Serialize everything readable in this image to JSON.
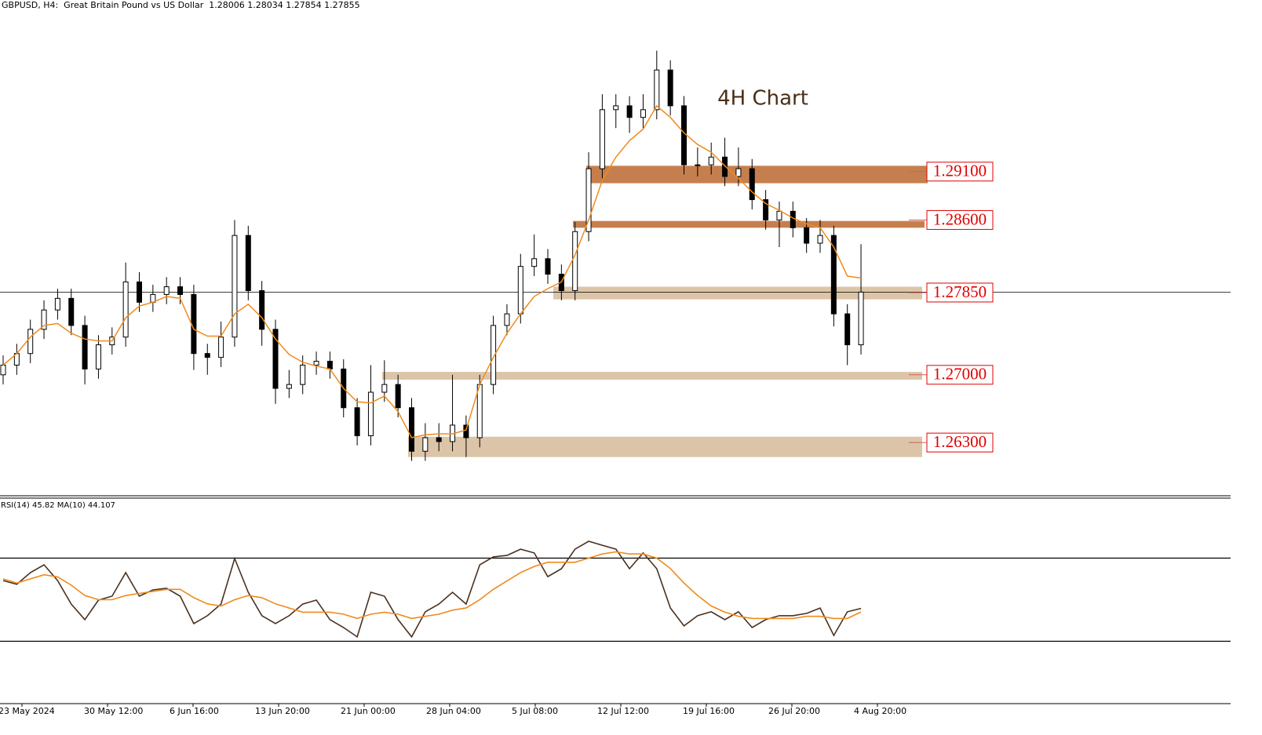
{
  "chart_data": [
    {
      "type": "candlestick",
      "title": "GBPUSD, H4:  Great Britain Pound vs US Dollar  1.28006 1.28034 1.27854 1.27855",
      "annotation": "4H Chart",
      "ylim": [
        1.2575,
        1.3076
      ],
      "open": [
        1.27,
        1.271,
        1.2722,
        1.2747,
        1.2767,
        1.2779,
        1.2751,
        1.2706,
        1.2731,
        1.2739,
        1.2796,
        1.2775,
        1.2783,
        1.2791,
        1.2783,
        1.2722,
        1.2718,
        1.2739,
        1.2844,
        1.2787,
        1.2747,
        1.2686,
        1.269,
        1.271,
        1.2714,
        1.2706,
        1.2666,
        1.2637,
        1.2682,
        1.269,
        1.2666,
        1.2621,
        1.2635,
        1.2631,
        1.2648,
        1.2635,
        1.269,
        1.2751,
        1.2763,
        1.2812,
        1.282,
        1.2804,
        1.2787,
        1.2848,
        1.2913,
        1.2974,
        1.2978,
        1.2966,
        1.2974,
        1.3015,
        1.2978,
        1.2917,
        1.2917,
        1.2925,
        1.2905,
        1.2913,
        1.2881,
        1.286,
        1.2869,
        1.2852,
        1.2836,
        1.2844,
        1.2763,
        1.2731
      ],
      "high": [
        1.272,
        1.2732,
        1.2757,
        1.2777,
        1.2789,
        1.2789,
        1.2761,
        1.2741,
        1.2749,
        1.2816,
        1.2806,
        1.2793,
        1.2801,
        1.2801,
        1.2793,
        1.2732,
        1.2755,
        1.286,
        1.2854,
        1.2797,
        1.2757,
        1.2705,
        1.272,
        1.2724,
        1.2724,
        1.2716,
        1.2676,
        1.271,
        1.2715,
        1.27,
        1.2676,
        1.265,
        1.265,
        1.27,
        1.2658,
        1.27,
        1.2761,
        1.2773,
        1.2825,
        1.2845,
        1.283,
        1.2814,
        1.2858,
        1.293,
        1.299,
        1.299,
        1.2988,
        1.299,
        1.3035,
        1.3025,
        1.2988,
        1.2935,
        1.294,
        1.2945,
        1.2935,
        1.2923,
        1.2891,
        1.2879,
        1.2879,
        1.2862,
        1.286,
        1.2854,
        1.2773,
        1.2835
      ],
      "low": [
        1.269,
        1.27,
        1.2712,
        1.2737,
        1.2757,
        1.2741,
        1.269,
        1.2696,
        1.2721,
        1.2729,
        1.2765,
        1.2765,
        1.2773,
        1.2773,
        1.2705,
        1.27,
        1.2708,
        1.2729,
        1.2777,
        1.273,
        1.267,
        1.2676,
        1.268,
        1.27,
        1.2696,
        1.2656,
        1.2627,
        1.2627,
        1.2672,
        1.2656,
        1.2611,
        1.2611,
        1.2621,
        1.2621,
        1.2615,
        1.2625,
        1.268,
        1.2741,
        1.2753,
        1.2802,
        1.2794,
        1.2777,
        1.2777,
        1.2838,
        1.2903,
        1.2955,
        1.295,
        1.2955,
        1.2964,
        1.2968,
        1.2907,
        1.2905,
        1.2907,
        1.2895,
        1.2895,
        1.2871,
        1.285,
        1.2832,
        1.2842,
        1.2826,
        1.2826,
        1.275,
        1.271,
        1.2721
      ],
      "close": [
        1.271,
        1.2722,
        1.2747,
        1.2767,
        1.2779,
        1.2751,
        1.2706,
        1.2731,
        1.2739,
        1.2796,
        1.2775,
        1.2783,
        1.2791,
        1.2783,
        1.2722,
        1.2718,
        1.2739,
        1.2844,
        1.2787,
        1.2747,
        1.2686,
        1.269,
        1.271,
        1.2714,
        1.2706,
        1.2666,
        1.2637,
        1.2682,
        1.269,
        1.2666,
        1.2621,
        1.2635,
        1.2631,
        1.2648,
        1.2635,
        1.269,
        1.2751,
        1.2763,
        1.2812,
        1.282,
        1.2804,
        1.2787,
        1.2848,
        1.2913,
        1.2974,
        1.2978,
        1.2966,
        1.2974,
        1.3015,
        1.2978,
        1.2917,
        1.2917,
        1.2925,
        1.2905,
        1.2913,
        1.2881,
        1.286,
        1.2869,
        1.2852,
        1.2836,
        1.2844,
        1.2763,
        1.2731,
        1.27855
      ],
      "ma": {
        "color": "#f08a1c",
        "values": [
          1.271,
          1.2722,
          1.2739,
          1.2751,
          1.2753,
          1.2743,
          1.2737,
          1.2735,
          1.2735,
          1.2759,
          1.2771,
          1.2775,
          1.2781,
          1.2779,
          1.2747,
          1.274,
          1.274,
          1.2763,
          1.2773,
          1.2759,
          1.2737,
          1.2721,
          1.2713,
          1.2709,
          1.2706,
          1.2686,
          1.2672,
          1.2671,
          1.2678,
          1.2662,
          1.2635,
          1.2638,
          1.2639,
          1.2639,
          1.2643,
          1.269,
          1.2718,
          1.2743,
          1.2763,
          1.2781,
          1.2789,
          1.2796,
          1.2824,
          1.286,
          1.2901,
          1.2925,
          1.2942,
          1.2954,
          1.2978,
          1.2966,
          1.295,
          1.2938,
          1.293,
          1.2916,
          1.2903,
          1.2889,
          1.2877,
          1.287,
          1.2862,
          1.2856,
          1.2852,
          1.2832,
          1.2802,
          1.28
        ]
      },
      "levels": [
        {
          "value": 1.291,
          "label": "1.29100",
          "low": 1.2898,
          "high": 1.2916,
          "color": "#c57f4e"
        },
        {
          "value": 1.286,
          "label": "1.28600",
          "low": 1.2852,
          "high": 1.2859,
          "color": "#c57f4e"
        },
        {
          "value": 1.2785,
          "label": "1.27850",
          "low": 1.2778,
          "high": 1.2791,
          "color": "#dcc4a8"
        },
        {
          "value": 1.27,
          "label": "1.27000",
          "low": 1.2695,
          "high": 1.2703,
          "color": "#dcc4a8"
        },
        {
          "value": 1.263,
          "label": "1.26300",
          "low": 1.2615,
          "high": 1.2636,
          "color": "#dcc4a8"
        }
      ]
    },
    {
      "type": "line",
      "title": "RSI(14) 45.82 MA(10) 44.107",
      "ylim": [
        0,
        100
      ],
      "levels": [
        70,
        30
      ],
      "series": [
        {
          "color": "#4a3020",
          "values": [
            59.2,
            57.4,
            63.0,
            66.8,
            59.2,
            47.9,
            40.4,
            49.8,
            51.7,
            63.0,
            51.7,
            54.7,
            55.5,
            51.7,
            38.5,
            42.3,
            47.9,
            69.8,
            53.6,
            42.3,
            38.5,
            42.3,
            47.9,
            49.8,
            40.4,
            36.6,
            32.1,
            53.6,
            51.7,
            40.4,
            32.1,
            44.2,
            47.9,
            53.6,
            47.9,
            66.8,
            70.6,
            71.3,
            74.3,
            72.5,
            61.1,
            64.9,
            74.3,
            78.1,
            76.2,
            74.3,
            64.9,
            72.5,
            64.9,
            46.0,
            37.4,
            42.3,
            44.2,
            40.4,
            44.2,
            36.6,
            40.4,
            42.3,
            42.3,
            43.4,
            46.0,
            32.8,
            44.2,
            45.82
          ]
        },
        {
          "color": "#f08a1c",
          "values": [
            60,
            58,
            60,
            62,
            61,
            57,
            52,
            50,
            50,
            52,
            53,
            54,
            55,
            55,
            51,
            48,
            47,
            50,
            52,
            51,
            48,
            46,
            44,
            44,
            44,
            43,
            41,
            43,
            44,
            43,
            41,
            42,
            43,
            45,
            46,
            50,
            55,
            59,
            63,
            66,
            68,
            68,
            68,
            70,
            72,
            73,
            72,
            72,
            70,
            65,
            58,
            52,
            47,
            44,
            42,
            41,
            41,
            41,
            41,
            42,
            42,
            41,
            41,
            44.107
          ]
        }
      ]
    }
  ],
  "x_labels": [
    "23 May 2024",
    "30 May 12:00",
    "6 Jun 16:00",
    "13 Jun 20:00",
    "21 Jun 00:00",
    "28 Jun 04:00",
    "5 Jul 08:00",
    "12 Jul 12:00",
    "19 Jul 16:00",
    "26 Jul 20:00",
    "4 Aug 20:00"
  ]
}
